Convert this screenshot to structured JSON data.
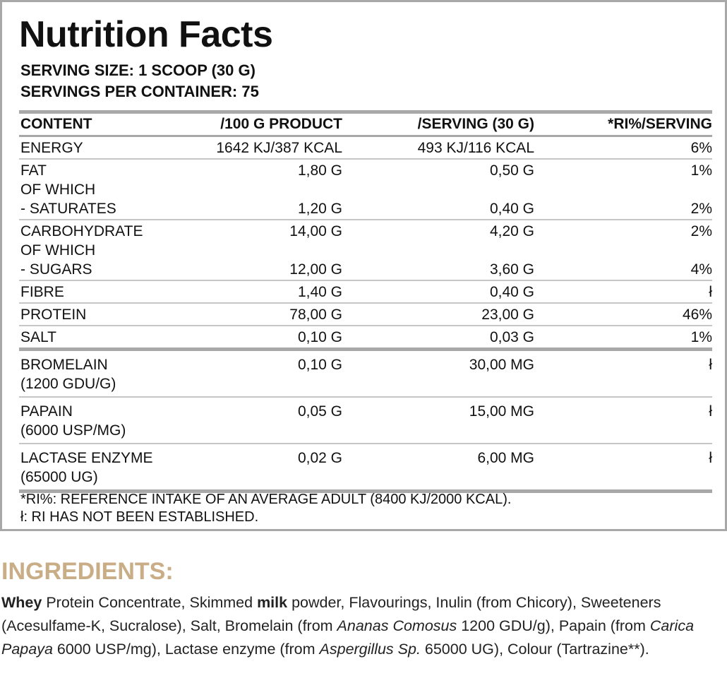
{
  "title": "Nutrition Facts",
  "serving_size": "SERVING SIZE: 1 SCOOP (30 G)",
  "servings_per_container": "SERVINGS PER CONTAINER: 75",
  "table": {
    "header": [
      "CONTENT",
      "/100 G PRODUCT",
      "/SERVING (30 G)",
      "*RI%/SERVING"
    ],
    "sections": [
      {
        "blocks": [
          {
            "lines": [
              {
                "label": "ENERGY",
                "values": [
                  "1642 KJ/387 KCAL",
                  "493 KJ/116 KCAL",
                  "6%"
                ]
              }
            ]
          },
          {
            "lines": [
              {
                "label": "FAT",
                "values": [
                  "1,80 G",
                  "0,50 G",
                  "1%"
                ]
              },
              {
                "label": "OF WHICH"
              },
              {
                "label": "- SATURATES",
                "values": [
                  "1,20 G",
                  "0,40 G",
                  "2%"
                ]
              }
            ]
          },
          {
            "lines": [
              {
                "label": "CARBOHYDRATE",
                "values": [
                  "14,00 G",
                  "4,20 G",
                  "2%"
                ]
              },
              {
                "label": "OF WHICH"
              },
              {
                "label": "- SUGARS",
                "values": [
                  "12,00 G",
                  "3,60 G",
                  "4%"
                ]
              }
            ]
          },
          {
            "lines": [
              {
                "label": "FIBRE",
                "values": [
                  "1,40 G",
                  "0,40 G",
                  "ł"
                ]
              }
            ]
          },
          {
            "lines": [
              {
                "label": "PROTEIN",
                "values": [
                  "78,00 G",
                  "23,00 G",
                  "46%"
                ]
              }
            ]
          },
          {
            "lines": [
              {
                "label": "SALT",
                "values": [
                  "0,10 G",
                  "0,03 G",
                  "1%"
                ]
              }
            ]
          }
        ]
      },
      {
        "blocks": [
          {
            "lines": [
              {
                "label": "BROMELAIN",
                "values": [
                  "0,10 G",
                  "30,00 MG",
                  "ł"
                ]
              },
              {
                "label": "(1200 GDU/G)"
              }
            ]
          },
          {
            "lines": [
              {
                "label": "PAPAIN",
                "values": [
                  "0,05 G",
                  "15,00 MG",
                  "ł"
                ]
              },
              {
                "label": "(6000 USP/MG)"
              }
            ]
          },
          {
            "lines": [
              {
                "label": "LACTASE ENZYME",
                "values": [
                  "0,02 G",
                  "6,00 MG",
                  "ł"
                ]
              },
              {
                "label": "(65000 UG)"
              }
            ]
          }
        ]
      }
    ]
  },
  "footnotes": [
    "*RI%: REFERENCE INTAKE OF AN AVERAGE ADULT (8400 KJ/2000 KCAL).",
    "ł: RI HAS NOT BEEN ESTABLISHED."
  ],
  "ingredients": {
    "heading": "INGREDIENTS:",
    "segments": [
      {
        "text": "Whey",
        "style": "bold"
      },
      {
        "text": " Protein Concentrate, Skimmed "
      },
      {
        "text": "milk",
        "style": "bold"
      },
      {
        "text": " powder, Flavourings, Inulin (from Chicory), Sweeteners (Acesulfame-K, Sucralose), Salt, Bromelain (from "
      },
      {
        "text": "Ananas Comosus",
        "style": "italic"
      },
      {
        "text": " 1200 GDU/g),  Papain (from "
      },
      {
        "text": "Carica Papaya",
        "style": "italic"
      },
      {
        "text": " 6000 USP/mg), Lactase enzyme (from "
      },
      {
        "text": "Aspergillus Sp.",
        "style": "italic"
      },
      {
        "text": " 65000 UG),  Colour (Tartrazine**)."
      }
    ]
  }
}
